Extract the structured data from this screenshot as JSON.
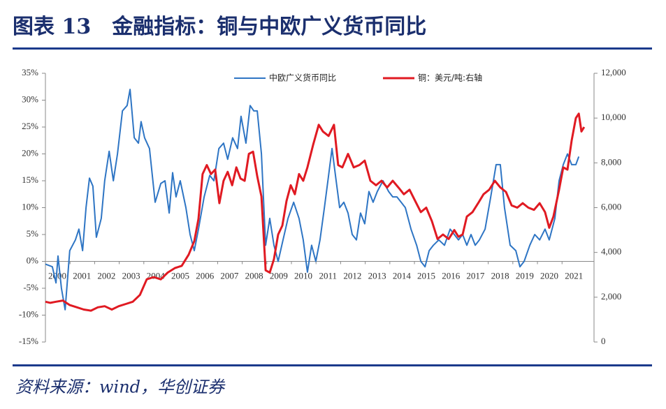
{
  "chart_data": {
    "type": "line",
    "title": "图表 13　金融指标：铜与中欧广义货币同比",
    "source": "资料来源：wind，华创证券",
    "xlim": [
      2000,
      2022.3
    ],
    "xticks": [
      2000,
      2001,
      2002,
      2003,
      2004,
      2005,
      2006,
      2007,
      2008,
      2009,
      2010,
      2011,
      2012,
      2013,
      2014,
      2015,
      2016,
      2017,
      2018,
      2019,
      2020,
      2021
    ],
    "ylim": [
      -15,
      35
    ],
    "yticks": [
      {
        "value": -15,
        "label": "-15%"
      },
      {
        "value": -10,
        "label": "-10%"
      },
      {
        "value": -5,
        "label": "-5%"
      },
      {
        "value": 0,
        "label": "0%"
      },
      {
        "value": 5,
        "label": "5%"
      },
      {
        "value": 10,
        "label": "10%"
      },
      {
        "value": 15,
        "label": "15%"
      },
      {
        "value": 20,
        "label": "20%"
      },
      {
        "value": 25,
        "label": "25%"
      },
      {
        "value": 30,
        "label": "30%"
      },
      {
        "value": 35,
        "label": "35%"
      }
    ],
    "y2lim": [
      0,
      12000
    ],
    "y2ticks": [
      0,
      {
        "value": 2000,
        "label": "2,000"
      },
      {
        "value": 4000,
        "label": "4,000"
      },
      {
        "value": 6000,
        "label": "6,000"
      },
      {
        "value": 8000,
        "label": "8,000"
      },
      {
        "value": 10000,
        "label": "10,000"
      },
      {
        "value": 12000,
        "label": "12,000"
      }
    ],
    "series": [
      {
        "name": "中欧广义货币同比",
        "color": "#2e75c4",
        "axis": "y",
        "x": [
          2000.0,
          2000.28,
          2000.43,
          2000.51,
          2000.65,
          2000.8,
          2000.99,
          2001.22,
          2001.36,
          2001.51,
          2001.65,
          2001.79,
          2001.93,
          2002.07,
          2002.27,
          2002.41,
          2002.59,
          2002.76,
          2002.93,
          2003.13,
          2003.32,
          2003.44,
          2003.61,
          2003.78,
          2003.89,
          2004.03,
          2004.23,
          2004.46,
          2004.69,
          2004.86,
          2005.03,
          2005.17,
          2005.31,
          2005.48,
          2005.71,
          2005.88,
          2006.05,
          2006.22,
          2006.45,
          2006.68,
          2006.85,
          2007.05,
          2007.24,
          2007.41,
          2007.61,
          2007.81,
          2007.95,
          2008.15,
          2008.32,
          2008.47,
          2008.61,
          2008.78,
          2008.95,
          2009.12,
          2009.29,
          2009.46,
          2009.66,
          2009.86,
          2010.09,
          2010.31,
          2010.48,
          2010.65,
          2010.82,
          2010.99,
          2011.16,
          2011.34,
          2011.51,
          2011.65,
          2011.79,
          2011.96,
          2012.13,
          2012.3,
          2012.47,
          2012.64,
          2012.81,
          2012.98,
          2013.15,
          2013.32,
          2013.49,
          2013.72,
          2013.95,
          2014.12,
          2014.29,
          2014.46,
          2014.63,
          2014.86,
          2015.09,
          2015.26,
          2015.43,
          2015.6,
          2015.77,
          2015.99,
          2016.22,
          2016.45,
          2016.62,
          2016.79,
          2016.96,
          2017.13,
          2017.3,
          2017.47,
          2017.64,
          2017.87,
          2018.1,
          2018.32,
          2018.49,
          2018.66,
          2018.89,
          2019.12,
          2019.29,
          2019.46,
          2019.69,
          2019.89,
          2020.09,
          2020.31,
          2020.48,
          2020.71,
          2020.88,
          2021.05,
          2021.22,
          2021.39,
          2021.56,
          2021.68
        ],
        "values": [
          -0.5,
          -1,
          -4,
          1,
          -5,
          -9,
          2,
          4,
          6,
          2,
          10,
          15.5,
          14,
          4.5,
          8,
          15,
          20.5,
          15,
          20,
          28,
          29,
          32,
          23,
          22,
          26,
          23,
          21,
          11,
          14.5,
          15,
          9,
          16.5,
          12,
          15,
          10,
          5,
          2,
          6,
          12,
          16,
          15,
          21,
          22,
          19,
          23,
          21,
          27,
          22,
          29,
          28,
          28,
          20,
          3,
          8,
          3,
          0,
          4,
          8,
          11,
          8,
          4,
          -2,
          3,
          0,
          4,
          10,
          16,
          21,
          16,
          10,
          11,
          9,
          5,
          4,
          9,
          7,
          13,
          11,
          13,
          15,
          13,
          12,
          12,
          11,
          10,
          6,
          3,
          0,
          -1,
          2,
          3,
          4,
          3,
          6,
          5,
          4,
          5,
          3,
          5,
          3,
          4,
          6,
          12,
          18,
          18,
          10,
          3,
          2,
          -1,
          0,
          3,
          5,
          4,
          6,
          4,
          8,
          15,
          18,
          20,
          18,
          18,
          19.5
        ]
      },
      {
        "name": "铜：美元/吨:右轴",
        "color": "#e01a22",
        "axis": "y2",
        "x": [
          2000.0,
          2000.2,
          2000.43,
          2000.71,
          2000.99,
          2001.28,
          2001.56,
          2001.85,
          2002.13,
          2002.41,
          2002.7,
          2002.98,
          2003.27,
          2003.55,
          2003.84,
          2004.12,
          2004.4,
          2004.69,
          2004.97,
          2005.26,
          2005.54,
          2005.82,
          2006.05,
          2006.22,
          2006.39,
          2006.56,
          2006.73,
          2006.9,
          2007.07,
          2007.24,
          2007.41,
          2007.59,
          2007.76,
          2007.93,
          2008.1,
          2008.27,
          2008.44,
          2008.61,
          2008.78,
          2008.95,
          2009.12,
          2009.29,
          2009.46,
          2009.63,
          2009.8,
          2009.97,
          2010.14,
          2010.31,
          2010.48,
          2010.65,
          2010.88,
          2011.11,
          2011.28,
          2011.51,
          2011.73,
          2011.9,
          2012.07,
          2012.3,
          2012.53,
          2012.76,
          2012.98,
          2013.21,
          2013.44,
          2013.66,
          2013.89,
          2014.12,
          2014.35,
          2014.57,
          2014.8,
          2015.03,
          2015.26,
          2015.48,
          2015.71,
          2015.94,
          2016.16,
          2016.39,
          2016.62,
          2016.79,
          2016.96,
          2017.13,
          2017.36,
          2017.59,
          2017.81,
          2018.04,
          2018.27,
          2018.49,
          2018.72,
          2018.95,
          2019.18,
          2019.4,
          2019.63,
          2019.86,
          2020.09,
          2020.31,
          2020.48,
          2020.65,
          2020.88,
          2021.05,
          2021.22,
          2021.39,
          2021.56,
          2021.68,
          2021.79,
          2021.9
        ],
        "values": [
          1800,
          1750,
          1800,
          1850,
          1650,
          1550,
          1450,
          1400,
          1550,
          1600,
          1450,
          1600,
          1700,
          1800,
          2100,
          2800,
          2900,
          2800,
          3100,
          3300,
          3400,
          3900,
          4500,
          5500,
          7500,
          7900,
          7500,
          7700,
          6200,
          7200,
          7600,
          7000,
          7800,
          7300,
          7200,
          8400,
          8500,
          7400,
          6500,
          3200,
          3100,
          3700,
          4800,
          5200,
          6300,
          7000,
          6600,
          7500,
          7200,
          7800,
          8800,
          9700,
          9400,
          9200,
          9700,
          7900,
          7800,
          8400,
          7800,
          7900,
          8100,
          7200,
          7000,
          7200,
          6900,
          7200,
          6900,
          6600,
          6800,
          6300,
          5800,
          6000,
          5400,
          4600,
          4800,
          4600,
          5000,
          4700,
          4800,
          5600,
          5800,
          6200,
          6600,
          6800,
          7200,
          6900,
          6700,
          6100,
          6000,
          6200,
          6000,
          5900,
          6200,
          5800,
          5100,
          5600,
          6800,
          7800,
          7700,
          9000,
          10000,
          10200,
          9400,
          9600
        ]
      }
    ]
  }
}
